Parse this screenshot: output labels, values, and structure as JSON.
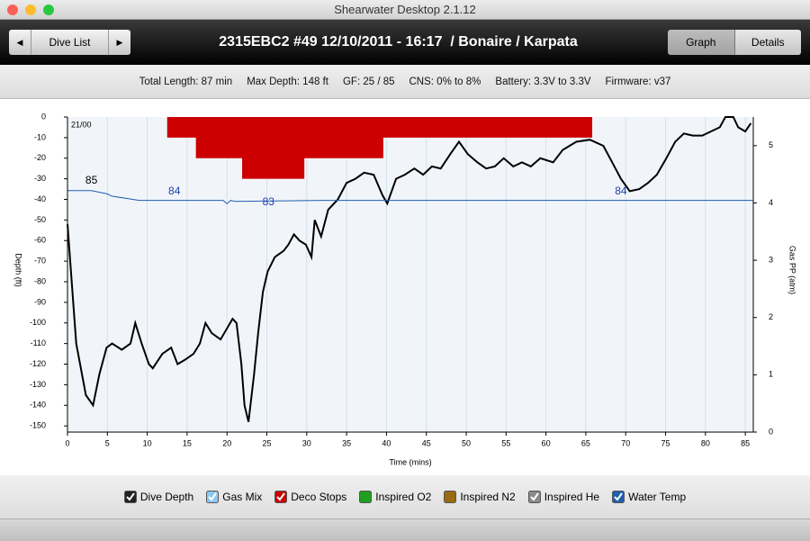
{
  "window": {
    "title": "Shearwater Desktop 2.1.12"
  },
  "toolbar": {
    "nav": "Dive List",
    "title": "2315EBC2 #49 12/10/2011 - 16:17  / Bonaire / Karpata",
    "tabs": [
      "Graph",
      "Details"
    ]
  },
  "info": [
    "Total Length: 87 min",
    "Max Depth: 148 ft",
    "GF: 25 / 85",
    "CNS: 0% to 8%",
    "Battery: 3.3V to 3.3V",
    "Firmware: v37"
  ],
  "chart_data": {
    "type": "line",
    "x_label": "Time (mins)",
    "y_label": "Depth (ft)",
    "y2_label": "Gas PP (atm)",
    "xlim": [
      0,
      86
    ],
    "xticks": [
      0,
      5,
      10,
      15,
      20,
      25,
      30,
      35,
      40,
      45,
      50,
      55,
      60,
      65,
      70,
      75,
      80,
      85
    ],
    "ylim": [
      -153,
      0
    ],
    "yticks": [
      0,
      -10,
      -20,
      -30,
      -40,
      -50,
      -60,
      -70,
      -80,
      -90,
      -100,
      -110,
      -120,
      -130,
      -140,
      -150
    ],
    "y2lim": [
      0,
      5.5
    ],
    "y2ticks": [
      0,
      1,
      2,
      3,
      4,
      5
    ],
    "y3lim": [
      62.7,
      91.8
    ],
    "grid": "x",
    "series": [
      {
        "color": "#000000",
        "x": [
          0,
          1.1,
          2.3,
          3.2,
          4,
          4.9,
          5.6,
          6.8,
          7.9,
          8.5,
          9.3,
          10.2,
          10.7,
          11.9,
          13,
          13.8,
          14.7,
          15.8,
          16.6,
          17.3,
          18.1,
          19.2,
          20.7,
          21.2,
          21.8,
          22.2,
          22.7,
          23.4,
          23.9,
          24.5,
          25.1,
          26,
          27.1,
          27.7,
          28.4,
          29.1,
          29.9,
          30.6,
          31,
          31.8,
          32.7,
          33.9,
          35,
          36.1,
          37.2,
          38.4,
          39.5,
          40.1,
          41.2,
          42.3,
          43.5,
          44.6,
          45.7,
          46.8,
          48,
          49.1,
          50.2,
          51.4,
          52.5,
          53.6,
          54.7,
          55.9,
          57,
          58.1,
          59.3,
          60.9,
          62.1,
          63.8,
          65.5,
          67.2,
          68.3,
          69.4,
          70.5,
          71.7,
          72.8,
          73.9,
          75.1,
          76.2,
          77.3,
          78.4,
          79.6,
          80.7,
          81.8,
          82.5,
          83.5,
          84.1,
          85,
          85.7
        ],
        "values": [
          -52,
          -110,
          -135,
          -140,
          -125,
          -112,
          -110,
          -113,
          -110,
          -100,
          -110,
          -120,
          -122,
          -115,
          -112,
          -120,
          -118,
          -115,
          -110,
          -100,
          -105,
          -108,
          -98,
          -100,
          -120,
          -140,
          -148,
          -125,
          -105,
          -85,
          -75,
          -68,
          -65,
          -62,
          -57,
          -60,
          -62,
          -68,
          -50,
          -58,
          -45,
          -40,
          -32,
          -30,
          -27,
          -28,
          -38,
          -42,
          -30,
          -28,
          -25,
          -28,
          -24,
          -25,
          -18,
          -12,
          -18,
          -22,
          -25,
          -24,
          -20,
          -24,
          -22,
          -24,
          -20,
          -22,
          -16,
          -12,
          -11,
          -14,
          -22,
          -30,
          -36,
          -35,
          -32,
          -28,
          -20,
          -12,
          -8,
          -9,
          -9,
          -7,
          -5,
          0,
          0,
          -5,
          -7,
          -3
        ]
      },
      {
        "color": "#1f5fb0",
        "axis": "y3",
        "x": [
          0,
          3,
          5,
          5.5,
          9,
          19.5,
          20,
          20.5,
          21,
          32,
          86
        ],
        "values": [
          85,
          85,
          84.7,
          84.5,
          84.1,
          84.1,
          83.8,
          84.1,
          84,
          84.1,
          84.1
        ]
      }
    ],
    "deco_stops": {
      "color": "#cc0000",
      "segments": [
        {
          "start": 12.5,
          "end": 65.8,
          "depth": -10
        },
        {
          "start": 16.1,
          "end": 39.6,
          "depth": -20
        },
        {
          "start": 21.9,
          "end": 29.7,
          "depth": -30
        }
      ]
    },
    "gas_mix": [
      {
        "x": 0,
        "label": "21/00"
      }
    ],
    "temp_labels": [
      {
        "x": 3,
        "value": 85,
        "color": "#000000"
      },
      {
        "x": 13.4,
        "value": 84,
        "color": "#1f3fb0"
      },
      {
        "x": 25.2,
        "value": 83,
        "color": "#1f3fb0"
      },
      {
        "x": 69.4,
        "value": 84,
        "color": "#1f3fb0"
      }
    ]
  },
  "legend": [
    {
      "label": "Dive Depth",
      "color": "#222222",
      "checked": true
    },
    {
      "label": "Gas Mix",
      "color": "#8ec8ef",
      "checked": true
    },
    {
      "label": "Deco Stops",
      "color": "#cc0000",
      "checked": true
    },
    {
      "label": "Inspired O2",
      "color": "#1fa01f",
      "checked": false
    },
    {
      "label": "Inspired N2",
      "color": "#9a6a10",
      "checked": false
    },
    {
      "label": "Inspired He",
      "color": "#8a8a8a",
      "checked": true
    },
    {
      "label": "Water Temp",
      "color": "#1f5fb0",
      "checked": true
    }
  ]
}
